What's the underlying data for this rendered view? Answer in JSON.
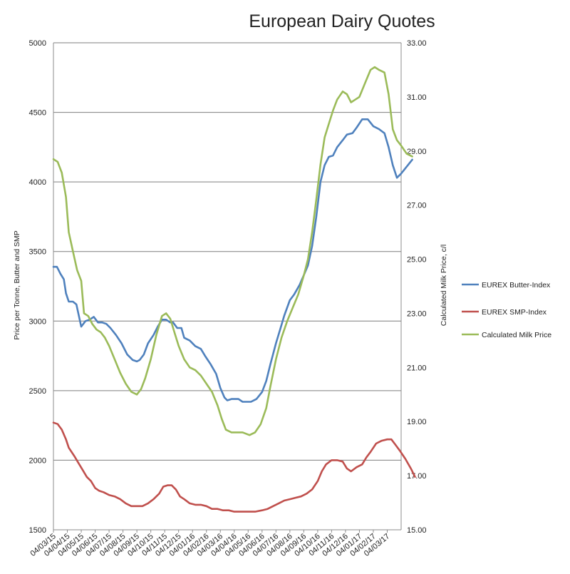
{
  "chart_data": {
    "type": "line",
    "title": "European Dairy Quotes",
    "ylabel": "Price per Tonne, Butter and SMP",
    "y2label": "Calculated Milk Price, c/l",
    "ylim": [
      1500,
      5000
    ],
    "y2lim": [
      15.0,
      33.0
    ],
    "yticks": [
      "1500",
      "2000",
      "2500",
      "3000",
      "3500",
      "4000",
      "4500",
      "5000"
    ],
    "y2ticks": [
      "15.00",
      "17.00",
      "19.00",
      "21.00",
      "23.00",
      "25.00",
      "27.00",
      "29.00",
      "31.00",
      "33.00"
    ],
    "x_tick_labels": [
      "04/03/15",
      "04/04/15",
      "04/05/15",
      "04/06/15",
      "04/07/15",
      "04/08/15",
      "04/09/15",
      "04/10/15",
      "04/11/15",
      "04/12/15",
      "04/01/16",
      "04/02/16",
      "04/03/16",
      "04/04/16",
      "04/05/16",
      "04/06/16",
      "04/07/16",
      "04/08/16",
      "04/09/16",
      "04/10/16",
      "04/11/16",
      "04/12/16",
      "04/01/17",
      "04/02/17",
      "04/03/17"
    ],
    "grid": true,
    "legend_position": "right",
    "series": [
      {
        "name": "EUREX Butter-Index",
        "axis": "left",
        "color": "#4f81bd",
        "points": [
          [
            0,
            3390
          ],
          [
            0.25,
            3390
          ],
          [
            0.5,
            3340
          ],
          [
            0.75,
            3300
          ],
          [
            0.9,
            3200
          ],
          [
            1.1,
            3140
          ],
          [
            1.4,
            3140
          ],
          [
            1.65,
            3120
          ],
          [
            2.0,
            2960
          ],
          [
            2.3,
            3000
          ],
          [
            2.6,
            3010
          ],
          [
            2.9,
            3030
          ],
          [
            3.2,
            2990
          ],
          [
            3.5,
            2990
          ],
          [
            3.8,
            2980
          ],
          [
            4.1,
            2950
          ],
          [
            4.5,
            2900
          ],
          [
            4.9,
            2840
          ],
          [
            5.3,
            2760
          ],
          [
            5.7,
            2720
          ],
          [
            6.0,
            2710
          ],
          [
            6.2,
            2720
          ],
          [
            6.5,
            2760
          ],
          [
            6.8,
            2840
          ],
          [
            7.2,
            2900
          ],
          [
            7.5,
            2960
          ],
          [
            7.8,
            3010
          ],
          [
            8.1,
            3010
          ],
          [
            8.4,
            2990
          ],
          [
            8.6,
            2990
          ],
          [
            8.9,
            2950
          ],
          [
            9.2,
            2950
          ],
          [
            9.4,
            2880
          ],
          [
            9.8,
            2860
          ],
          [
            10.2,
            2820
          ],
          [
            10.6,
            2800
          ],
          [
            10.9,
            2750
          ],
          [
            11.3,
            2690
          ],
          [
            11.7,
            2620
          ],
          [
            12.0,
            2520
          ],
          [
            12.3,
            2450
          ],
          [
            12.5,
            2430
          ],
          [
            12.8,
            2440
          ],
          [
            13.3,
            2440
          ],
          [
            13.6,
            2420
          ],
          [
            14.2,
            2420
          ],
          [
            14.6,
            2440
          ],
          [
            15.0,
            2490
          ],
          [
            15.3,
            2570
          ],
          [
            15.6,
            2690
          ],
          [
            16.0,
            2840
          ],
          [
            16.3,
            2940
          ],
          [
            16.6,
            3040
          ],
          [
            17.0,
            3150
          ],
          [
            17.3,
            3190
          ],
          [
            17.7,
            3260
          ],
          [
            18.0,
            3330
          ],
          [
            18.3,
            3400
          ],
          [
            18.6,
            3540
          ],
          [
            18.9,
            3750
          ],
          [
            19.2,
            4000
          ],
          [
            19.5,
            4120
          ],
          [
            19.8,
            4180
          ],
          [
            20.1,
            4190
          ],
          [
            20.4,
            4250
          ],
          [
            20.8,
            4300
          ],
          [
            21.1,
            4340
          ],
          [
            21.5,
            4350
          ],
          [
            21.8,
            4390
          ],
          [
            22.2,
            4450
          ],
          [
            22.6,
            4450
          ],
          [
            23.0,
            4400
          ],
          [
            23.4,
            4380
          ],
          [
            23.8,
            4350
          ],
          [
            24.1,
            4250
          ],
          [
            24.4,
            4120
          ],
          [
            24.7,
            4030
          ],
          [
            25.0,
            4060
          ],
          [
            25.4,
            4110
          ],
          [
            25.8,
            4160
          ]
        ]
      },
      {
        "name": "EUREX SMP-Index",
        "axis": "left",
        "color": "#c0504d",
        "points": [
          [
            0,
            2270
          ],
          [
            0.3,
            2260
          ],
          [
            0.6,
            2220
          ],
          [
            0.9,
            2150
          ],
          [
            1.1,
            2090
          ],
          [
            1.5,
            2030
          ],
          [
            1.8,
            1980
          ],
          [
            2.1,
            1930
          ],
          [
            2.4,
            1880
          ],
          [
            2.7,
            1850
          ],
          [
            3.0,
            1800
          ],
          [
            3.3,
            1780
          ],
          [
            3.6,
            1770
          ],
          [
            4.0,
            1750
          ],
          [
            4.4,
            1740
          ],
          [
            4.8,
            1720
          ],
          [
            5.2,
            1690
          ],
          [
            5.6,
            1670
          ],
          [
            6.0,
            1670
          ],
          [
            6.4,
            1670
          ],
          [
            6.8,
            1690
          ],
          [
            7.2,
            1720
          ],
          [
            7.6,
            1760
          ],
          [
            7.9,
            1810
          ],
          [
            8.2,
            1820
          ],
          [
            8.5,
            1820
          ],
          [
            8.8,
            1790
          ],
          [
            9.1,
            1740
          ],
          [
            9.4,
            1720
          ],
          [
            9.8,
            1690
          ],
          [
            10.2,
            1680
          ],
          [
            10.6,
            1680
          ],
          [
            11.0,
            1670
          ],
          [
            11.4,
            1650
          ],
          [
            11.8,
            1650
          ],
          [
            12.2,
            1640
          ],
          [
            12.6,
            1640
          ],
          [
            13.0,
            1630
          ],
          [
            13.5,
            1630
          ],
          [
            14.0,
            1630
          ],
          [
            14.5,
            1630
          ],
          [
            15.0,
            1640
          ],
          [
            15.4,
            1650
          ],
          [
            15.8,
            1670
          ],
          [
            16.2,
            1690
          ],
          [
            16.6,
            1710
          ],
          [
            17.0,
            1720
          ],
          [
            17.4,
            1730
          ],
          [
            17.8,
            1740
          ],
          [
            18.2,
            1760
          ],
          [
            18.6,
            1790
          ],
          [
            19.0,
            1850
          ],
          [
            19.3,
            1920
          ],
          [
            19.6,
            1970
          ],
          [
            20.0,
            2000
          ],
          [
            20.4,
            2000
          ],
          [
            20.8,
            1990
          ],
          [
            21.1,
            1940
          ],
          [
            21.4,
            1920
          ],
          [
            21.8,
            1950
          ],
          [
            22.2,
            1970
          ],
          [
            22.5,
            2020
          ],
          [
            22.8,
            2060
          ],
          [
            23.2,
            2120
          ],
          [
            23.6,
            2140
          ],
          [
            24.0,
            2150
          ],
          [
            24.3,
            2150
          ],
          [
            24.6,
            2110
          ],
          [
            24.9,
            2070
          ],
          [
            25.3,
            2010
          ],
          [
            25.7,
            1940
          ],
          [
            26.0,
            1880
          ]
        ]
      },
      {
        "name": "Calculated Milk Price",
        "axis": "right",
        "color": "#9bbb59",
        "points": [
          [
            0,
            28.7
          ],
          [
            0.3,
            28.6
          ],
          [
            0.6,
            28.2
          ],
          [
            0.9,
            27.3
          ],
          [
            1.1,
            26.0
          ],
          [
            1.4,
            25.3
          ],
          [
            1.7,
            24.6
          ],
          [
            2.0,
            24.2
          ],
          [
            2.2,
            23.0
          ],
          [
            2.5,
            22.9
          ],
          [
            2.8,
            22.6
          ],
          [
            3.1,
            22.4
          ],
          [
            3.4,
            22.3
          ],
          [
            3.7,
            22.1
          ],
          [
            4.0,
            21.8
          ],
          [
            4.4,
            21.3
          ],
          [
            4.8,
            20.8
          ],
          [
            5.2,
            20.4
          ],
          [
            5.6,
            20.1
          ],
          [
            6.0,
            20.0
          ],
          [
            6.3,
            20.2
          ],
          [
            6.6,
            20.6
          ],
          [
            7.0,
            21.3
          ],
          [
            7.4,
            22.2
          ],
          [
            7.8,
            22.9
          ],
          [
            8.1,
            23.0
          ],
          [
            8.4,
            22.8
          ],
          [
            8.7,
            22.3
          ],
          [
            9.0,
            21.8
          ],
          [
            9.4,
            21.3
          ],
          [
            9.8,
            21.0
          ],
          [
            10.2,
            20.9
          ],
          [
            10.6,
            20.7
          ],
          [
            11.0,
            20.4
          ],
          [
            11.4,
            20.1
          ],
          [
            11.8,
            19.6
          ],
          [
            12.1,
            19.1
          ],
          [
            12.4,
            18.7
          ],
          [
            12.8,
            18.6
          ],
          [
            13.2,
            18.6
          ],
          [
            13.6,
            18.6
          ],
          [
            14.1,
            18.5
          ],
          [
            14.5,
            18.6
          ],
          [
            14.9,
            18.9
          ],
          [
            15.3,
            19.5
          ],
          [
            15.6,
            20.3
          ],
          [
            16.0,
            21.3
          ],
          [
            16.4,
            22.1
          ],
          [
            16.8,
            22.7
          ],
          [
            17.2,
            23.2
          ],
          [
            17.6,
            23.7
          ],
          [
            18.0,
            24.4
          ],
          [
            18.3,
            25.0
          ],
          [
            18.6,
            26.0
          ],
          [
            18.9,
            27.2
          ],
          [
            19.2,
            28.5
          ],
          [
            19.5,
            29.5
          ],
          [
            19.8,
            30.0
          ],
          [
            20.1,
            30.5
          ],
          [
            20.4,
            30.9
          ],
          [
            20.8,
            31.2
          ],
          [
            21.1,
            31.1
          ],
          [
            21.4,
            30.8
          ],
          [
            21.7,
            30.9
          ],
          [
            22.0,
            31.0
          ],
          [
            22.4,
            31.5
          ],
          [
            22.8,
            32.0
          ],
          [
            23.1,
            32.1
          ],
          [
            23.4,
            32.0
          ],
          [
            23.8,
            31.9
          ],
          [
            24.1,
            31.1
          ],
          [
            24.4,
            29.8
          ],
          [
            24.7,
            29.4
          ],
          [
            25.0,
            29.2
          ],
          [
            25.4,
            28.9
          ],
          [
            25.8,
            28.8
          ]
        ]
      }
    ]
  }
}
